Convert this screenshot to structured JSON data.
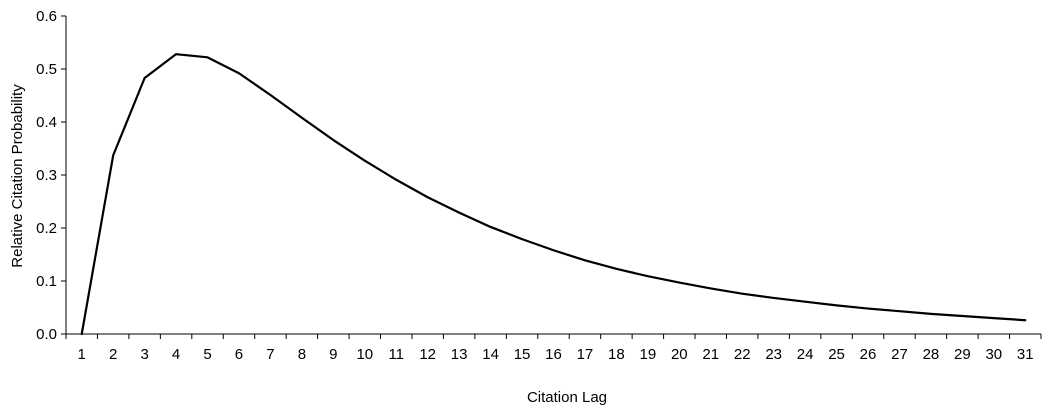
{
  "chart_data": {
    "type": "line",
    "title": "",
    "xlabel": "Citation Lag",
    "ylabel": "Relative Citation Probability",
    "ylim": [
      0,
      0.6
    ],
    "yticks": [
      "0.0",
      "0.1",
      "0.2",
      "0.3",
      "0.4",
      "0.5",
      "0.6"
    ],
    "xlim": [
      1,
      31
    ],
    "categories": [
      "1",
      "2",
      "3",
      "4",
      "5",
      "6",
      "7",
      "8",
      "9",
      "10",
      "11",
      "12",
      "13",
      "14",
      "15",
      "16",
      "17",
      "18",
      "19",
      "20",
      "21",
      "22",
      "23",
      "24",
      "25",
      "26",
      "27",
      "28",
      "29",
      "30",
      "31"
    ],
    "grid": false,
    "legend": "none",
    "series": [
      {
        "values": [
          0.0,
          0.337,
          0.483,
          0.528,
          0.522,
          0.492,
          0.451,
          0.408,
          0.366,
          0.327,
          0.291,
          0.258,
          0.229,
          0.202,
          0.179,
          0.158,
          0.139,
          0.123,
          0.109,
          0.097,
          0.086,
          0.076,
          0.068,
          0.061,
          0.054,
          0.048,
          0.043,
          0.038,
          0.034,
          0.03,
          0.026
        ],
        "color": "#000000"
      }
    ]
  }
}
